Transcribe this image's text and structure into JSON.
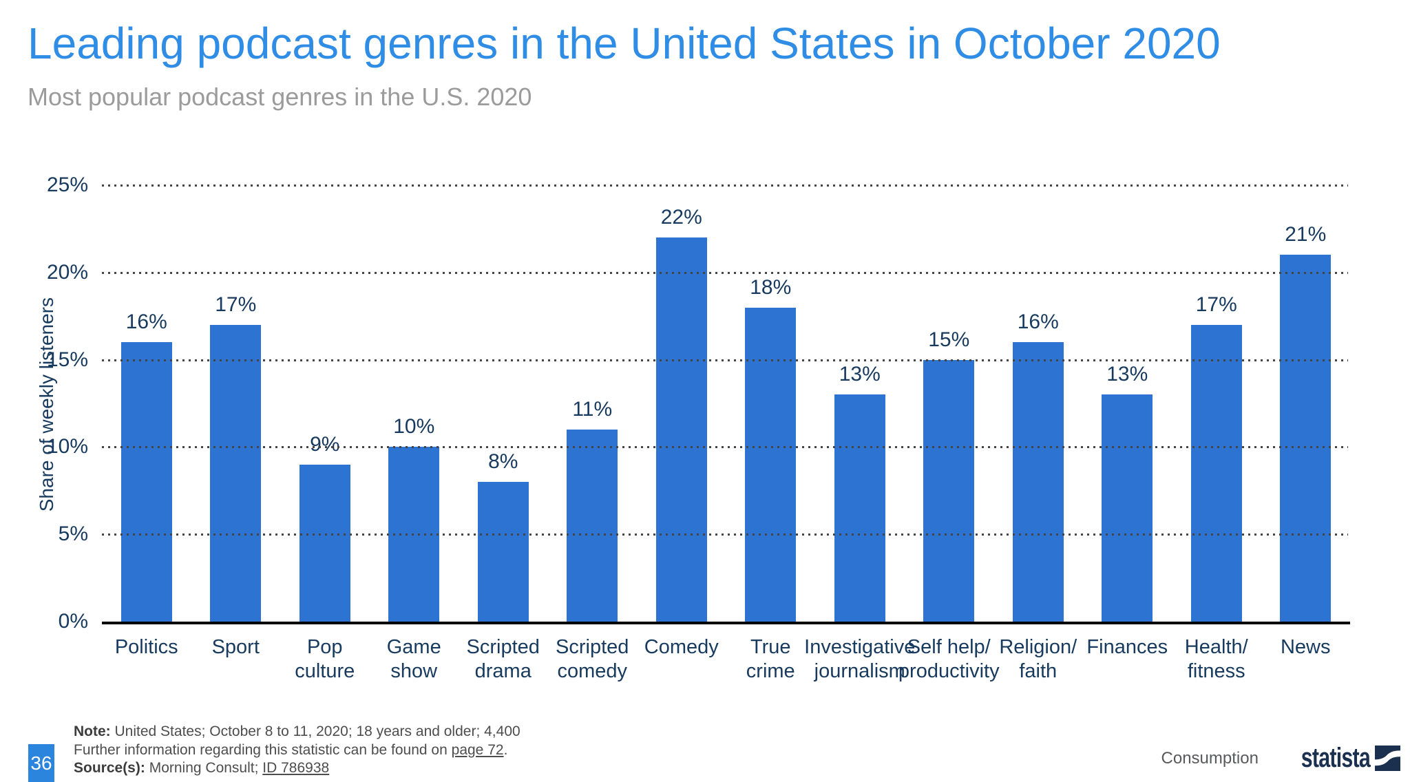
{
  "header": {
    "title": "Leading podcast genres in the United States in October 2020",
    "subtitle": "Most popular podcast genres in the U.S. 2020"
  },
  "chart_data": {
    "type": "bar",
    "title": "Leading podcast genres in the United States in October 2020",
    "categories": [
      "Politics",
      "Sport",
      "Pop culture",
      "Game show",
      "Scripted\ndrama",
      "Scripted\ncomedy",
      "Comedy",
      "True crime",
      "Investigative\njournalism",
      "Self help/\nproductivity",
      "Religion/\nfaith",
      "Finances",
      "Health/\nfitness",
      "News"
    ],
    "values": [
      16,
      17,
      9,
      10,
      8,
      11,
      22,
      18,
      13,
      15,
      16,
      13,
      17,
      21
    ],
    "value_suffix": "%",
    "xlabel": "",
    "ylabel": "Share of weekly listeners",
    "ylim": [
      0,
      25
    ],
    "yticks": [
      0,
      5,
      10,
      15,
      20,
      25
    ],
    "ytick_labels": [
      "0%",
      "5%",
      "10%",
      "15%",
      "20%",
      "25%"
    ],
    "grid": "horizontal dotted",
    "legend": "none",
    "bar_color": "#2d73d2",
    "text_color": "#173a5e"
  },
  "colors": {
    "title_blue": "#2f8de5",
    "subtitle_gray": "#9b9b9b",
    "bar_blue": "#2d73d2",
    "badge_blue": "#2b85dd",
    "brand_navy": "#1b2f4e"
  },
  "footer": {
    "page_number": "36",
    "note_label": "Note:",
    "note_text": "United States; October 8 to 11, 2020; 18 years and older; 4,400",
    "further_text": "Further information regarding this statistic can be found on",
    "further_link": "page 72",
    "further_suffix": ".",
    "source_label": "Source(s):",
    "source_text": "Morning Consult;",
    "source_link": "ID 786938",
    "section_label": "Consumption",
    "brand": "statista"
  }
}
